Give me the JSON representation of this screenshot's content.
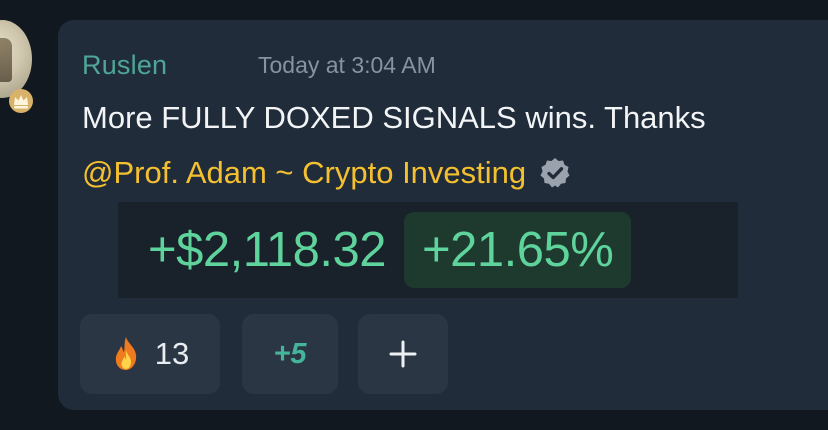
{
  "message": {
    "author": "Ruslen",
    "timestamp": "Today at 3:04 AM",
    "text": "More FULLY DOXED SIGNALS wins. Thanks",
    "mention": "@Prof. Adam ~ Crypto Investing"
  },
  "pnl": {
    "amount": "+$2,118.32",
    "percent": "+21.65%"
  },
  "reactions": {
    "fire_count": "13",
    "more_label": "+5"
  },
  "colors": {
    "author": "#4fa697",
    "mention": "#f5c02f",
    "profit": "#5fd39c",
    "card_bg": "#202c3a",
    "page_bg": "#111820"
  },
  "icons": {
    "verified": "verified-badge-icon",
    "fire": "fire-icon",
    "add_reaction": "plus-icon",
    "crown": "crown-icon"
  }
}
